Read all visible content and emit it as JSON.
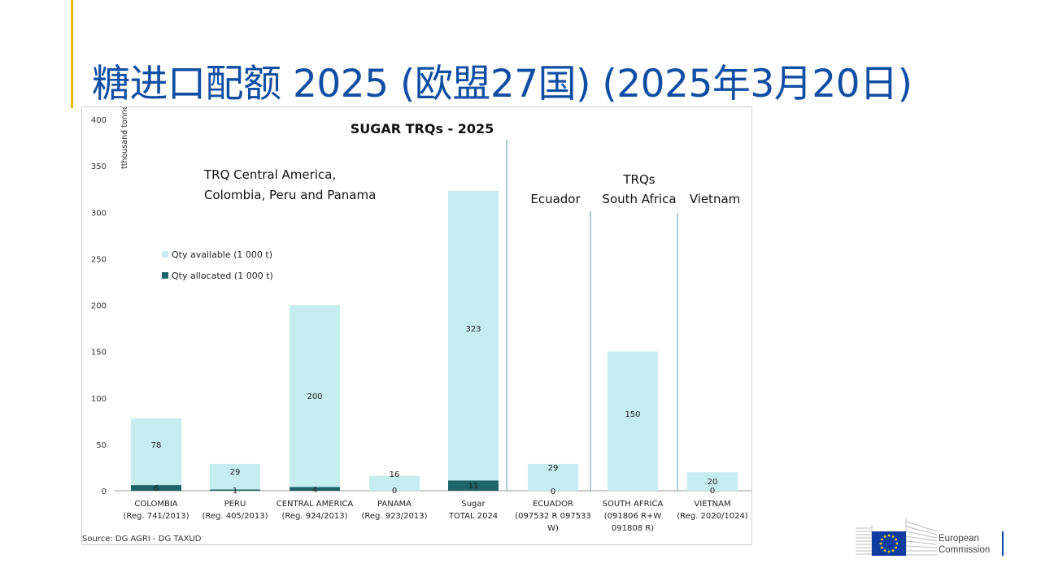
{
  "title": "糖进口配额 2025 (欧盟27国) (2025年3月20日)",
  "colors": {
    "accent": "#f2b705",
    "title": "#0f4ea3",
    "available": "#c5ecee",
    "allocated": "#1e6468",
    "divider": "#5b9aa8"
  },
  "chart_data": {
    "type": "bar",
    "title": "SUGAR TRQs - 2025",
    "ylabel": "tthousand tonnes",
    "ylim": [
      0,
      400
    ],
    "yticks": [
      0,
      50,
      100,
      150,
      200,
      250,
      300,
      350,
      400
    ],
    "categories": [
      [
        "COLOMBIA",
        "(Reg. 741/2013)"
      ],
      [
        "PERU",
        "(Reg. 405/2013)"
      ],
      [
        "CENTRAL AMERICA",
        "(Reg. 924/2013)"
      ],
      [
        "PANAMA",
        "(Reg. 923/2013)"
      ],
      [
        "Sugar",
        "TOTAL 2024"
      ],
      [
        "ECUADOR",
        "(097532 R 097533",
        "W)"
      ],
      [
        "SOUTH AFRICA",
        "(091806 R+W",
        "091808 R)"
      ],
      [
        "VIETNAM",
        "(Reg. 2020/1024)"
      ]
    ],
    "series": [
      {
        "name": "Qty available (1 000 t)",
        "values": [
          78,
          29,
          200,
          16,
          323,
          29,
          150,
          20
        ],
        "labels": [
          "78",
          "29",
          "200",
          "16",
          "323",
          "29",
          "150",
          "20"
        ]
      },
      {
        "name": "Qty allocated (1 000 t)",
        "values": [
          6,
          1,
          4,
          0,
          11,
          0,
          0,
          0
        ],
        "labels": [
          "6",
          "1",
          "4",
          "0",
          "11",
          "0",
          "",
          "0"
        ]
      }
    ],
    "legend_position": "upper-left",
    "annotations": {
      "group_main": [
        "TRQ Central America,",
        "Colombia, Peru and Panama"
      ],
      "ecuador": "Ecuador",
      "trqs": "TRQs",
      "south_africa": "South Africa",
      "vietnam": "Vietnam"
    },
    "source": "Source: DG AGRI - DG TAXUD"
  },
  "logo": {
    "line1": "European",
    "line2": "Commission"
  }
}
